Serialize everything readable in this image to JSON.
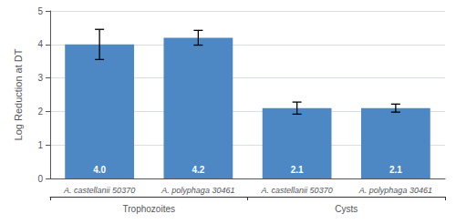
{
  "chart_data": {
    "type": "bar",
    "categories": [
      "A. castellanii 50370",
      "A. polyphaga 30461",
      "A. castellanii 50370",
      "A. polyphaga 30461"
    ],
    "groups": [
      "Trophozoites",
      "Trophozoites",
      "Cysts",
      "Cysts"
    ],
    "values": [
      4.0,
      4.2,
      2.1,
      2.1
    ],
    "value_labels": [
      "4.0",
      "4.2",
      "2.1",
      "2.1"
    ],
    "errors": [
      0.45,
      0.22,
      0.18,
      0.12
    ],
    "color": "#4d88c4",
    "ylabel": "Log Reduction at DT",
    "ylim": [
      0.0,
      5.0
    ],
    "yticks": [
      0,
      1,
      2,
      3,
      4,
      5
    ],
    "grid": true,
    "data_labels": true
  }
}
